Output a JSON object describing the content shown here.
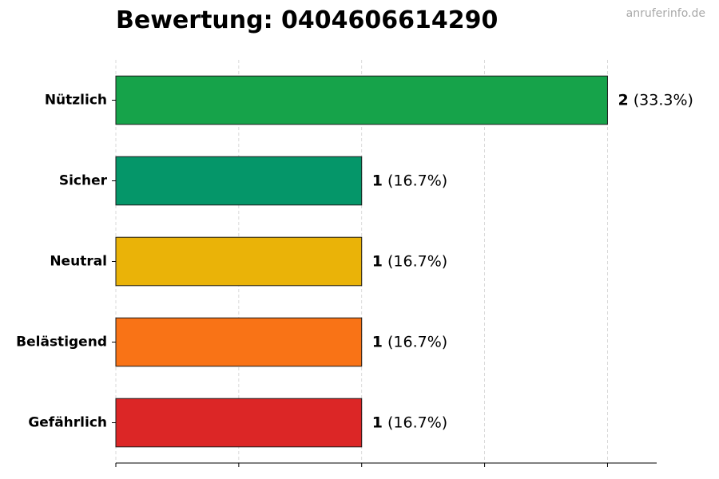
{
  "title": "Bewertung: 0404606614290",
  "watermark": "anruferinfo.de",
  "chart_data": {
    "type": "bar",
    "orientation": "horizontal",
    "categories": [
      "Nützlich",
      "Sicher",
      "Neutral",
      "Belästigend",
      "Gefährlich"
    ],
    "values": [
      2,
      1,
      1,
      1,
      1
    ],
    "value_labels": [
      {
        "count": "2",
        "pct": "(33.3%)"
      },
      {
        "count": "1",
        "pct": "(16.7%)"
      },
      {
        "count": "1",
        "pct": "(16.7%)"
      },
      {
        "count": "1",
        "pct": "(16.7%)"
      },
      {
        "count": "1",
        "pct": "(16.7%)"
      }
    ],
    "colors": [
      "#16a34a",
      "#059669",
      "#eab308",
      "#f97316",
      "#dc2626"
    ],
    "xlim": [
      0,
      2.2
    ],
    "x_gridlines": [
      0,
      0.5,
      1,
      1.5,
      2
    ],
    "grid": true,
    "xlabel": "",
    "ylabel": ""
  }
}
